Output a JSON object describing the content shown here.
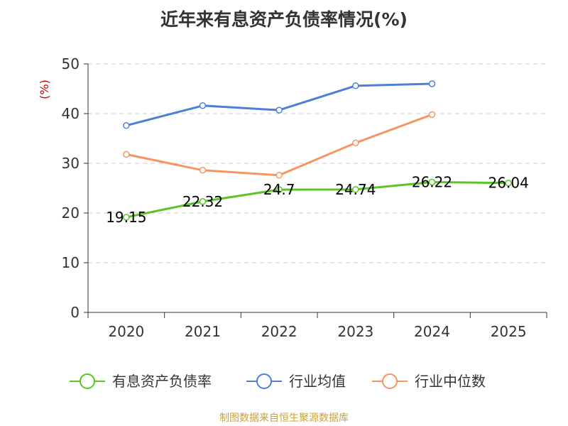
{
  "chart_data": {
    "type": "line",
    "title": "近年来有息资产负债率情况(%)",
    "ylabel": "(%)",
    "xlabel": "",
    "categories": [
      "2020",
      "2021",
      "2022",
      "2023",
      "2024",
      "2025"
    ],
    "ylim": [
      0,
      50
    ],
    "yticks": [
      0,
      10,
      20,
      30,
      40,
      50
    ],
    "grid": true,
    "legend_position": "bottom",
    "series": [
      {
        "name": "有息资产负债率",
        "color": "#5cc427",
        "values": [
          19.15,
          22.32,
          24.7,
          24.74,
          26.22,
          26.04
        ],
        "labels": [
          "19.15",
          "22.32",
          "24.7",
          "24.74",
          "26.22",
          "26.04"
        ]
      },
      {
        "name": "行业均值",
        "color": "#4d7fd8",
        "values": [
          37.6,
          41.6,
          40.7,
          45.6,
          46.0,
          null
        ]
      },
      {
        "name": "行业中位数",
        "color": "#f79561",
        "values": [
          31.8,
          28.6,
          27.6,
          34.1,
          39.8,
          null
        ]
      }
    ]
  },
  "source": "制图数据来自恒生聚源数据库"
}
